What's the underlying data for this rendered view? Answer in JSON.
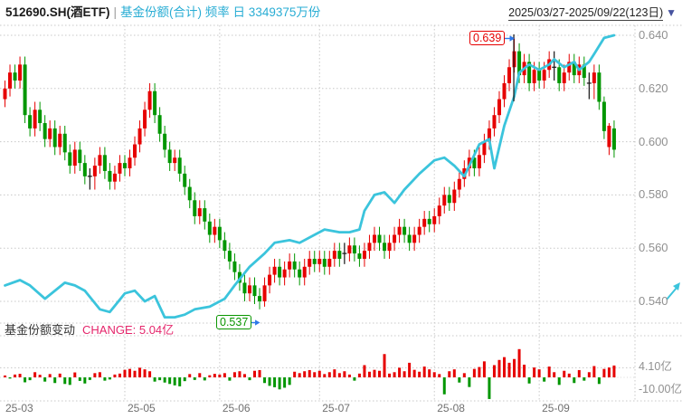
{
  "header": {
    "code": "512690.SH(酒ETF)",
    "separator": "|",
    "series_info": "基金份额(合计) 频率 日 3349375万份",
    "date_range": "2025/03/27-2025/09/22(123日)",
    "dropdown_glyph": "▼"
  },
  "sub_header": {
    "title": "基金份额变动",
    "change": "CHANGE: 5.04亿"
  },
  "y_axis": {
    "labels": [
      "0.640",
      "0.620",
      "0.600",
      "0.580",
      "0.560",
      "0.540"
    ],
    "values": [
      640,
      620,
      600,
      580,
      560,
      540
    ]
  },
  "x_axis": {
    "ticks": [
      {
        "label": "25-03",
        "day": 0,
        "grid": false
      },
      {
        "label": "25-05",
        "day": 24,
        "grid": true
      },
      {
        "label": "25-06",
        "day": 43,
        "grid": true
      },
      {
        "label": "25-07",
        "day": 63,
        "grid": true
      },
      {
        "label": "25-08",
        "day": 86,
        "grid": true
      },
      {
        "label": "25-09",
        "day": 107,
        "grid": true
      }
    ]
  },
  "sub_axis": {
    "upper_label": "4.10亿",
    "upper_value": 4.1,
    "lower_label": "-10.00亿",
    "lower_value": -10.0
  },
  "annotations": {
    "high": {
      "label": "0.639",
      "day": 102,
      "price": 639
    },
    "low": {
      "label": "0.537",
      "day": 51,
      "price": 537
    }
  },
  "colors": {
    "up": "#e60000",
    "down": "#009600",
    "doji": "#141414",
    "line": "#3bc4dc",
    "grid": "#c8c8c8",
    "arrow": "#2d78e8",
    "high_label": "#e60000",
    "low_label": "#0a9600",
    "change_text": "#e5256b",
    "header_series": "#29add4",
    "axis_text": "#909090"
  },
  "chart_data": {
    "type": "candlestick+line+bar",
    "instrument": "512690.SH(酒ETF)",
    "period": "2025/03/27-2025/09/22",
    "days": 123,
    "price_scale": 0.001,
    "price_axis_range": [
      0.54,
      0.64
    ],
    "annotated_high": 0.639,
    "annotated_low": 0.537,
    "candles_ohlc_x1000": [
      [
        616,
        623,
        613,
        620
      ],
      [
        620,
        629,
        617,
        626
      ],
      [
        626,
        629,
        620,
        623
      ],
      [
        623,
        632,
        620,
        629
      ],
      [
        629,
        632,
        607,
        610
      ],
      [
        610,
        613,
        602,
        605
      ],
      [
        605,
        615,
        602,
        612
      ],
      [
        612,
        615,
        604,
        607
      ],
      [
        607,
        610,
        598,
        601
      ],
      [
        601,
        608,
        598,
        605
      ],
      [
        605,
        608,
        595,
        598
      ],
      [
        598,
        606,
        595,
        603
      ],
      [
        603,
        606,
        593,
        596
      ],
      [
        596,
        599,
        588,
        591
      ],
      [
        591,
        600,
        588,
        597
      ],
      [
        597,
        600,
        589,
        592
      ],
      [
        592,
        595,
        584,
        587
      ],
      [
        587,
        590,
        582,
        587
      ],
      [
        587,
        594,
        582,
        591
      ],
      [
        591,
        598,
        588,
        595
      ],
      [
        595,
        598,
        586,
        589
      ],
      [
        589,
        592,
        582,
        585
      ],
      [
        585,
        591,
        582,
        588
      ],
      [
        588,
        595,
        585,
        592
      ],
      [
        592,
        595,
        587,
        590
      ],
      [
        590,
        597,
        587,
        594
      ],
      [
        594,
        602,
        591,
        599
      ],
      [
        599,
        608,
        596,
        605
      ],
      [
        605,
        615,
        602,
        612
      ],
      [
        612,
        622,
        609,
        619
      ],
      [
        619,
        622,
        607,
        610
      ],
      [
        610,
        613,
        600,
        603
      ],
      [
        603,
        606,
        594,
        597
      ],
      [
        597,
        600,
        589,
        592
      ],
      [
        592,
        597,
        589,
        594
      ],
      [
        594,
        597,
        585,
        588
      ],
      [
        588,
        591,
        580,
        583
      ],
      [
        583,
        586,
        575,
        578
      ],
      [
        578,
        581,
        569,
        572
      ],
      [
        572,
        578,
        569,
        575
      ],
      [
        575,
        578,
        567,
        570
      ],
      [
        570,
        573,
        562,
        565
      ],
      [
        565,
        571,
        562,
        568
      ],
      [
        568,
        571,
        560,
        563
      ],
      [
        563,
        566,
        556,
        559
      ],
      [
        559,
        562,
        552,
        555
      ],
      [
        555,
        558,
        548,
        551
      ],
      [
        551,
        554,
        544,
        547
      ],
      [
        547,
        550,
        540,
        543
      ],
      [
        543,
        549,
        540,
        546
      ],
      [
        546,
        549,
        539,
        542
      ],
      [
        542,
        545,
        537,
        540
      ],
      [
        540,
        549,
        538,
        546
      ],
      [
        546,
        553,
        543,
        550
      ],
      [
        550,
        556,
        547,
        553
      ],
      [
        553,
        556,
        546,
        549
      ],
      [
        549,
        555,
        546,
        552
      ],
      [
        552,
        558,
        549,
        555
      ],
      [
        555,
        558,
        549,
        552
      ],
      [
        552,
        555,
        546,
        549
      ],
      [
        549,
        556,
        546,
        553
      ],
      [
        553,
        559,
        550,
        556
      ],
      [
        556,
        559,
        551,
        554
      ],
      [
        554,
        559,
        551,
        556
      ],
      [
        556,
        559,
        550,
        553
      ],
      [
        553,
        559,
        550,
        556
      ],
      [
        556,
        562,
        553,
        559
      ],
      [
        559,
        562,
        553,
        556
      ],
      [
        558,
        562,
        554,
        558
      ],
      [
        558,
        564,
        555,
        561
      ],
      [
        561,
        564,
        555,
        558
      ],
      [
        558,
        561,
        553,
        556
      ],
      [
        556,
        562,
        553,
        559
      ],
      [
        559,
        565,
        556,
        562
      ],
      [
        562,
        568,
        559,
        565
      ],
      [
        565,
        568,
        559,
        562
      ],
      [
        562,
        565,
        556,
        559
      ],
      [
        559,
        565,
        556,
        562
      ],
      [
        562,
        568,
        559,
        565
      ],
      [
        565,
        571,
        562,
        568
      ],
      [
        568,
        571,
        562,
        565
      ],
      [
        565,
        568,
        559,
        562
      ],
      [
        562,
        568,
        559,
        565
      ],
      [
        565,
        571,
        562,
        568
      ],
      [
        568,
        574,
        565,
        571
      ],
      [
        571,
        574,
        566,
        569
      ],
      [
        569,
        575,
        566,
        572
      ],
      [
        572,
        579,
        569,
        576
      ],
      [
        576,
        583,
        573,
        580
      ],
      [
        580,
        583,
        574,
        577
      ],
      [
        577,
        585,
        574,
        582
      ],
      [
        582,
        589,
        579,
        586
      ],
      [
        586,
        593,
        583,
        590
      ],
      [
        590,
        597,
        587,
        594
      ],
      [
        594,
        597,
        587,
        590
      ],
      [
        590,
        598,
        587,
        595
      ],
      [
        595,
        603,
        592,
        600
      ],
      [
        600,
        608,
        597,
        605
      ],
      [
        605,
        613,
        602,
        610
      ],
      [
        610,
        619,
        607,
        616
      ],
      [
        616,
        625,
        613,
        622
      ],
      [
        622,
        631,
        619,
        628
      ],
      [
        628,
        639,
        626,
        634
      ],
      [
        634,
        637,
        622,
        625
      ],
      [
        625,
        633,
        622,
        630
      ],
      [
        630,
        633,
        619,
        622
      ],
      [
        622,
        630,
        619,
        627
      ],
      [
        627,
        630,
        620,
        623
      ],
      [
        623,
        630,
        620,
        627
      ],
      [
        627,
        634,
        624,
        631
      ],
      [
        628,
        634,
        623,
        628
      ],
      [
        628,
        631,
        619,
        622
      ],
      [
        622,
        629,
        619,
        626
      ],
      [
        626,
        633,
        623,
        630
      ],
      [
        630,
        633,
        622,
        625
      ],
      [
        625,
        632,
        622,
        629
      ],
      [
        629,
        632,
        621,
        624
      ],
      [
        622,
        626,
        616,
        622
      ],
      [
        622,
        629,
        616,
        626
      ],
      [
        626,
        629,
        612,
        615
      ],
      [
        615,
        617,
        601,
        604
      ],
      [
        598,
        607,
        595,
        606
      ],
      [
        605,
        608,
        594,
        597
      ]
    ],
    "fund_shares_line": {
      "latest_label": "3349375万份",
      "points_day_priceaxis_x1000": [
        [
          0,
          546
        ],
        [
          3,
          548
        ],
        [
          5,
          546
        ],
        [
          8,
          541
        ],
        [
          12,
          547
        ],
        [
          14,
          546
        ],
        [
          16,
          544
        ],
        [
          19,
          537
        ],
        [
          21,
          536
        ],
        [
          24,
          543
        ],
        [
          26,
          544
        ],
        [
          28,
          540
        ],
        [
          30,
          542
        ],
        [
          32,
          534
        ],
        [
          34,
          534
        ],
        [
          36,
          535
        ],
        [
          38,
          537
        ],
        [
          41,
          538
        ],
        [
          44,
          541
        ],
        [
          46,
          546
        ],
        [
          49,
          553
        ],
        [
          52,
          558
        ],
        [
          54,
          562
        ],
        [
          57,
          563
        ],
        [
          59,
          562
        ],
        [
          62,
          565
        ],
        [
          64,
          567
        ],
        [
          67,
          566
        ],
        [
          69,
          566
        ],
        [
          71,
          567
        ],
        [
          72,
          574
        ],
        [
          74,
          580
        ],
        [
          76,
          581
        ],
        [
          78,
          577
        ],
        [
          80,
          582
        ],
        [
          83,
          588
        ],
        [
          86,
          593
        ],
        [
          88,
          594
        ],
        [
          90,
          591
        ],
        [
          92,
          587
        ],
        [
          95,
          599
        ],
        [
          97,
          601
        ],
        [
          98,
          590
        ],
        [
          100,
          606
        ],
        [
          102,
          617
        ],
        [
          103,
          626
        ],
        [
          105,
          629
        ],
        [
          107,
          627
        ],
        [
          109,
          629
        ],
        [
          110,
          631
        ],
        [
          112,
          628
        ],
        [
          114,
          630
        ],
        [
          115,
          627
        ],
        [
          117,
          630
        ],
        [
          118,
          633
        ],
        [
          119,
          636
        ],
        [
          120,
          639
        ],
        [
          122,
          640
        ]
      ]
    },
    "share_change_bars_yi": [
      0.8,
      -0.5,
      1.2,
      1.5,
      -2.1,
      -1.2,
      2.2,
      1.1,
      -1.8,
      1.4,
      -2.4,
      1.6,
      -2.8,
      -3.2,
      2.1,
      -1.5,
      -2.6,
      -1.1,
      1.8,
      2.2,
      -1.4,
      -0.9,
      1.2,
      1.6,
      3.2,
      3.6,
      2.8,
      4.1,
      3.4,
      2.6,
      -1.8,
      -1.2,
      -2.2,
      -2.8,
      -3.4,
      -3.8,
      -1.6,
      1.4,
      -1.1,
      1.8,
      -1.3,
      0.9,
      1.5,
      1.2,
      1.8,
      -1.4,
      2.2,
      2.6,
      1.4,
      -1.2,
      2.8,
      3.1,
      -2.4,
      -3.6,
      -4.2,
      -5.1,
      -4.4,
      -3.2,
      2.4,
      1.8,
      2.6,
      3.1,
      2.2,
      2.8,
      1.4,
      2.2,
      3.4,
      1.8,
      2.6,
      1.2,
      -1.4,
      1.6,
      5.2,
      2.4,
      3.2,
      2.8,
      9.9,
      1.6,
      2.2,
      4.1,
      2.6,
      6.2,
      3.2,
      2.4,
      4.6,
      3.4,
      2.2,
      1.4,
      -7.2,
      2.6,
      3.4,
      -2.2,
      1.8,
      -4.1,
      3.6,
      4.4,
      6.8,
      -9.2,
      5.2,
      7.4,
      8.6,
      6.2,
      7.8,
      12.0,
      5.4,
      -2.6,
      4.2,
      3.4,
      -1.8,
      4.6,
      2.2,
      -3.2,
      2.8,
      1.6,
      -2.4,
      3.1,
      -1.4,
      2.2,
      4.8,
      -2.8,
      3.6,
      4.2,
      5.04
    ],
    "share_change_axis": {
      "upper": 4.1,
      "lower": -10.0,
      "unit": "亿"
    },
    "legend_note": "red=share increase/up candle, green=decrease/down candle, cyan line=total fund shares"
  }
}
